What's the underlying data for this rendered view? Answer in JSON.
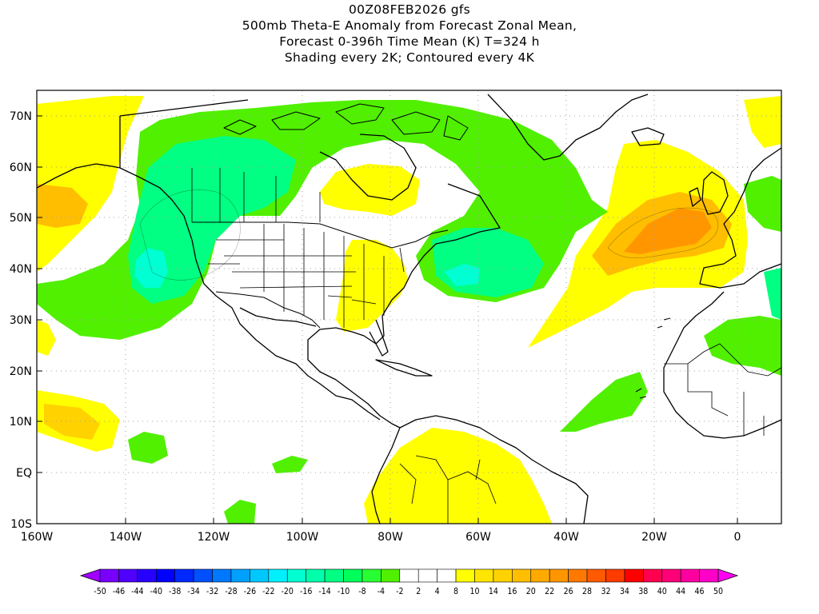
{
  "title": {
    "line1": "00Z08FEB2026 gfs",
    "line2": "500mb Theta-E Anomaly from Forecast Zonal Mean,",
    "line3": "Forecast 0-396h Time Mean (K) T=324 h",
    "line4": "Shading every 2K; Contoured every 4K"
  },
  "latitude_labels": [
    "70N",
    "60N",
    "50N",
    "40N",
    "30N",
    "20N",
    "10N",
    "EQ",
    "10S"
  ],
  "longitude_labels": [
    "160W",
    "140W",
    "120W",
    "100W",
    "80W",
    "60W",
    "40W",
    "20W",
    "0"
  ],
  "colorbar": {
    "labels": [
      "-50",
      "-46",
      "-44",
      "-40",
      "-38",
      "-34",
      "-32",
      "-28",
      "-26",
      "-22",
      "-20",
      "-16",
      "-14",
      "-10",
      "-8",
      "-4",
      "-2",
      "2",
      "4",
      "8",
      "10",
      "14",
      "16",
      "20",
      "22",
      "26",
      "28",
      "32",
      "34",
      "38",
      "40",
      "44",
      "46",
      "50"
    ],
    "colors": [
      "#a000ff",
      "#7800ff",
      "#5000ff",
      "#2800ff",
      "#0000ff",
      "#0028ff",
      "#0050ff",
      "#0078ff",
      "#00a0ff",
      "#00c8ff",
      "#00f0ff",
      "#00ffd2",
      "#00ffaa",
      "#00ff82",
      "#00ff5a",
      "#28ff32",
      "#50f000",
      "#ffffff",
      "#ffffff",
      "#ffffff",
      "#ffff00",
      "#ffe600",
      "#ffd200",
      "#ffbe00",
      "#ffaa00",
      "#ff9600",
      "#ff7800",
      "#ff5a00",
      "#ff3c00",
      "#ff0000",
      "#ff0050",
      "#ff0078",
      "#ff00a0",
      "#ff00c8",
      "#ff00f0"
    ]
  },
  "colors": {
    "positive_light": "#ffff00",
    "positive_mid": "#ffd200",
    "positive_strong": "#ff9600",
    "negative_light": "#50f000",
    "negative_mid": "#00ff82",
    "negative_strong": "#00ffd2",
    "coastline": "#000000",
    "grid": "#a0a0a0"
  }
}
